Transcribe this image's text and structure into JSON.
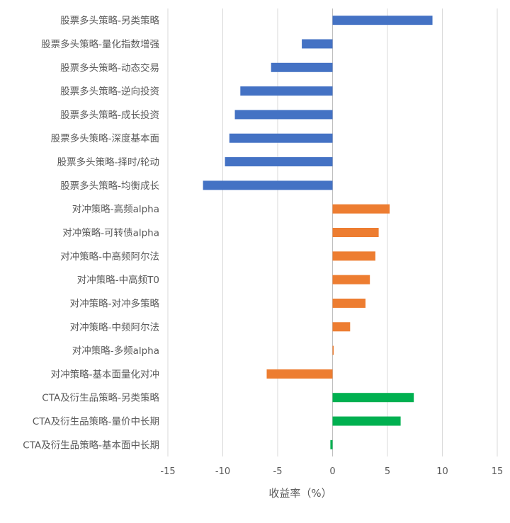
{
  "chart_data": {
    "type": "bar",
    "orientation": "horizontal",
    "xlabel": "收益率（%）",
    "xlim": [
      -15,
      15
    ],
    "xticks": [
      -15,
      -10,
      -5,
      0,
      5,
      10,
      15
    ],
    "grid": "vertical",
    "legend": "none",
    "colors": {
      "股票多头": "#4472C4",
      "对冲": "#ED7D31",
      "CTA": "#00B050"
    },
    "bars": [
      {
        "label": "股票多头策略-另类策略",
        "value": 9.1,
        "group": "股票多头"
      },
      {
        "label": "股票多头策略-量化指数增强",
        "value": -2.8,
        "group": "股票多头"
      },
      {
        "label": "股票多头策略-动态交易",
        "value": -5.6,
        "group": "股票多头"
      },
      {
        "label": "股票多头策略-逆向投资",
        "value": -8.4,
        "group": "股票多头"
      },
      {
        "label": "股票多头策略-成长投资",
        "value": -8.9,
        "group": "股票多头"
      },
      {
        "label": "股票多头策略-深度基本面",
        "value": -9.4,
        "group": "股票多头"
      },
      {
        "label": "股票多头策略-择时/轮动",
        "value": -9.8,
        "group": "股票多头"
      },
      {
        "label": "股票多头策略-均衡成长",
        "value": -11.8,
        "group": "股票多头"
      },
      {
        "label": "对冲策略-高频alpha",
        "value": 5.2,
        "group": "对冲"
      },
      {
        "label": "对冲策略-可转债alpha",
        "value": 4.2,
        "group": "对冲"
      },
      {
        "label": "对冲策略-中高频阿尔法",
        "value": 3.9,
        "group": "对冲"
      },
      {
        "label": "对冲策略-中高频T0",
        "value": 3.4,
        "group": "对冲"
      },
      {
        "label": "对冲策略-对冲多策略",
        "value": 3.0,
        "group": "对冲"
      },
      {
        "label": "对冲策略-中频阿尔法",
        "value": 1.6,
        "group": "对冲"
      },
      {
        "label": "对冲策略-多频alpha",
        "value": 0.1,
        "group": "对冲"
      },
      {
        "label": "对冲策略-基本面量化对冲",
        "value": -6.0,
        "group": "对冲"
      },
      {
        "label": "CTA及衍生品策略-另类策略",
        "value": 7.4,
        "group": "CTA"
      },
      {
        "label": "CTA及衍生品策略-量价中长期",
        "value": 6.2,
        "group": "CTA"
      },
      {
        "label": "CTA及衍生品策略-基本面中长期",
        "value": -0.2,
        "group": "CTA"
      }
    ]
  }
}
